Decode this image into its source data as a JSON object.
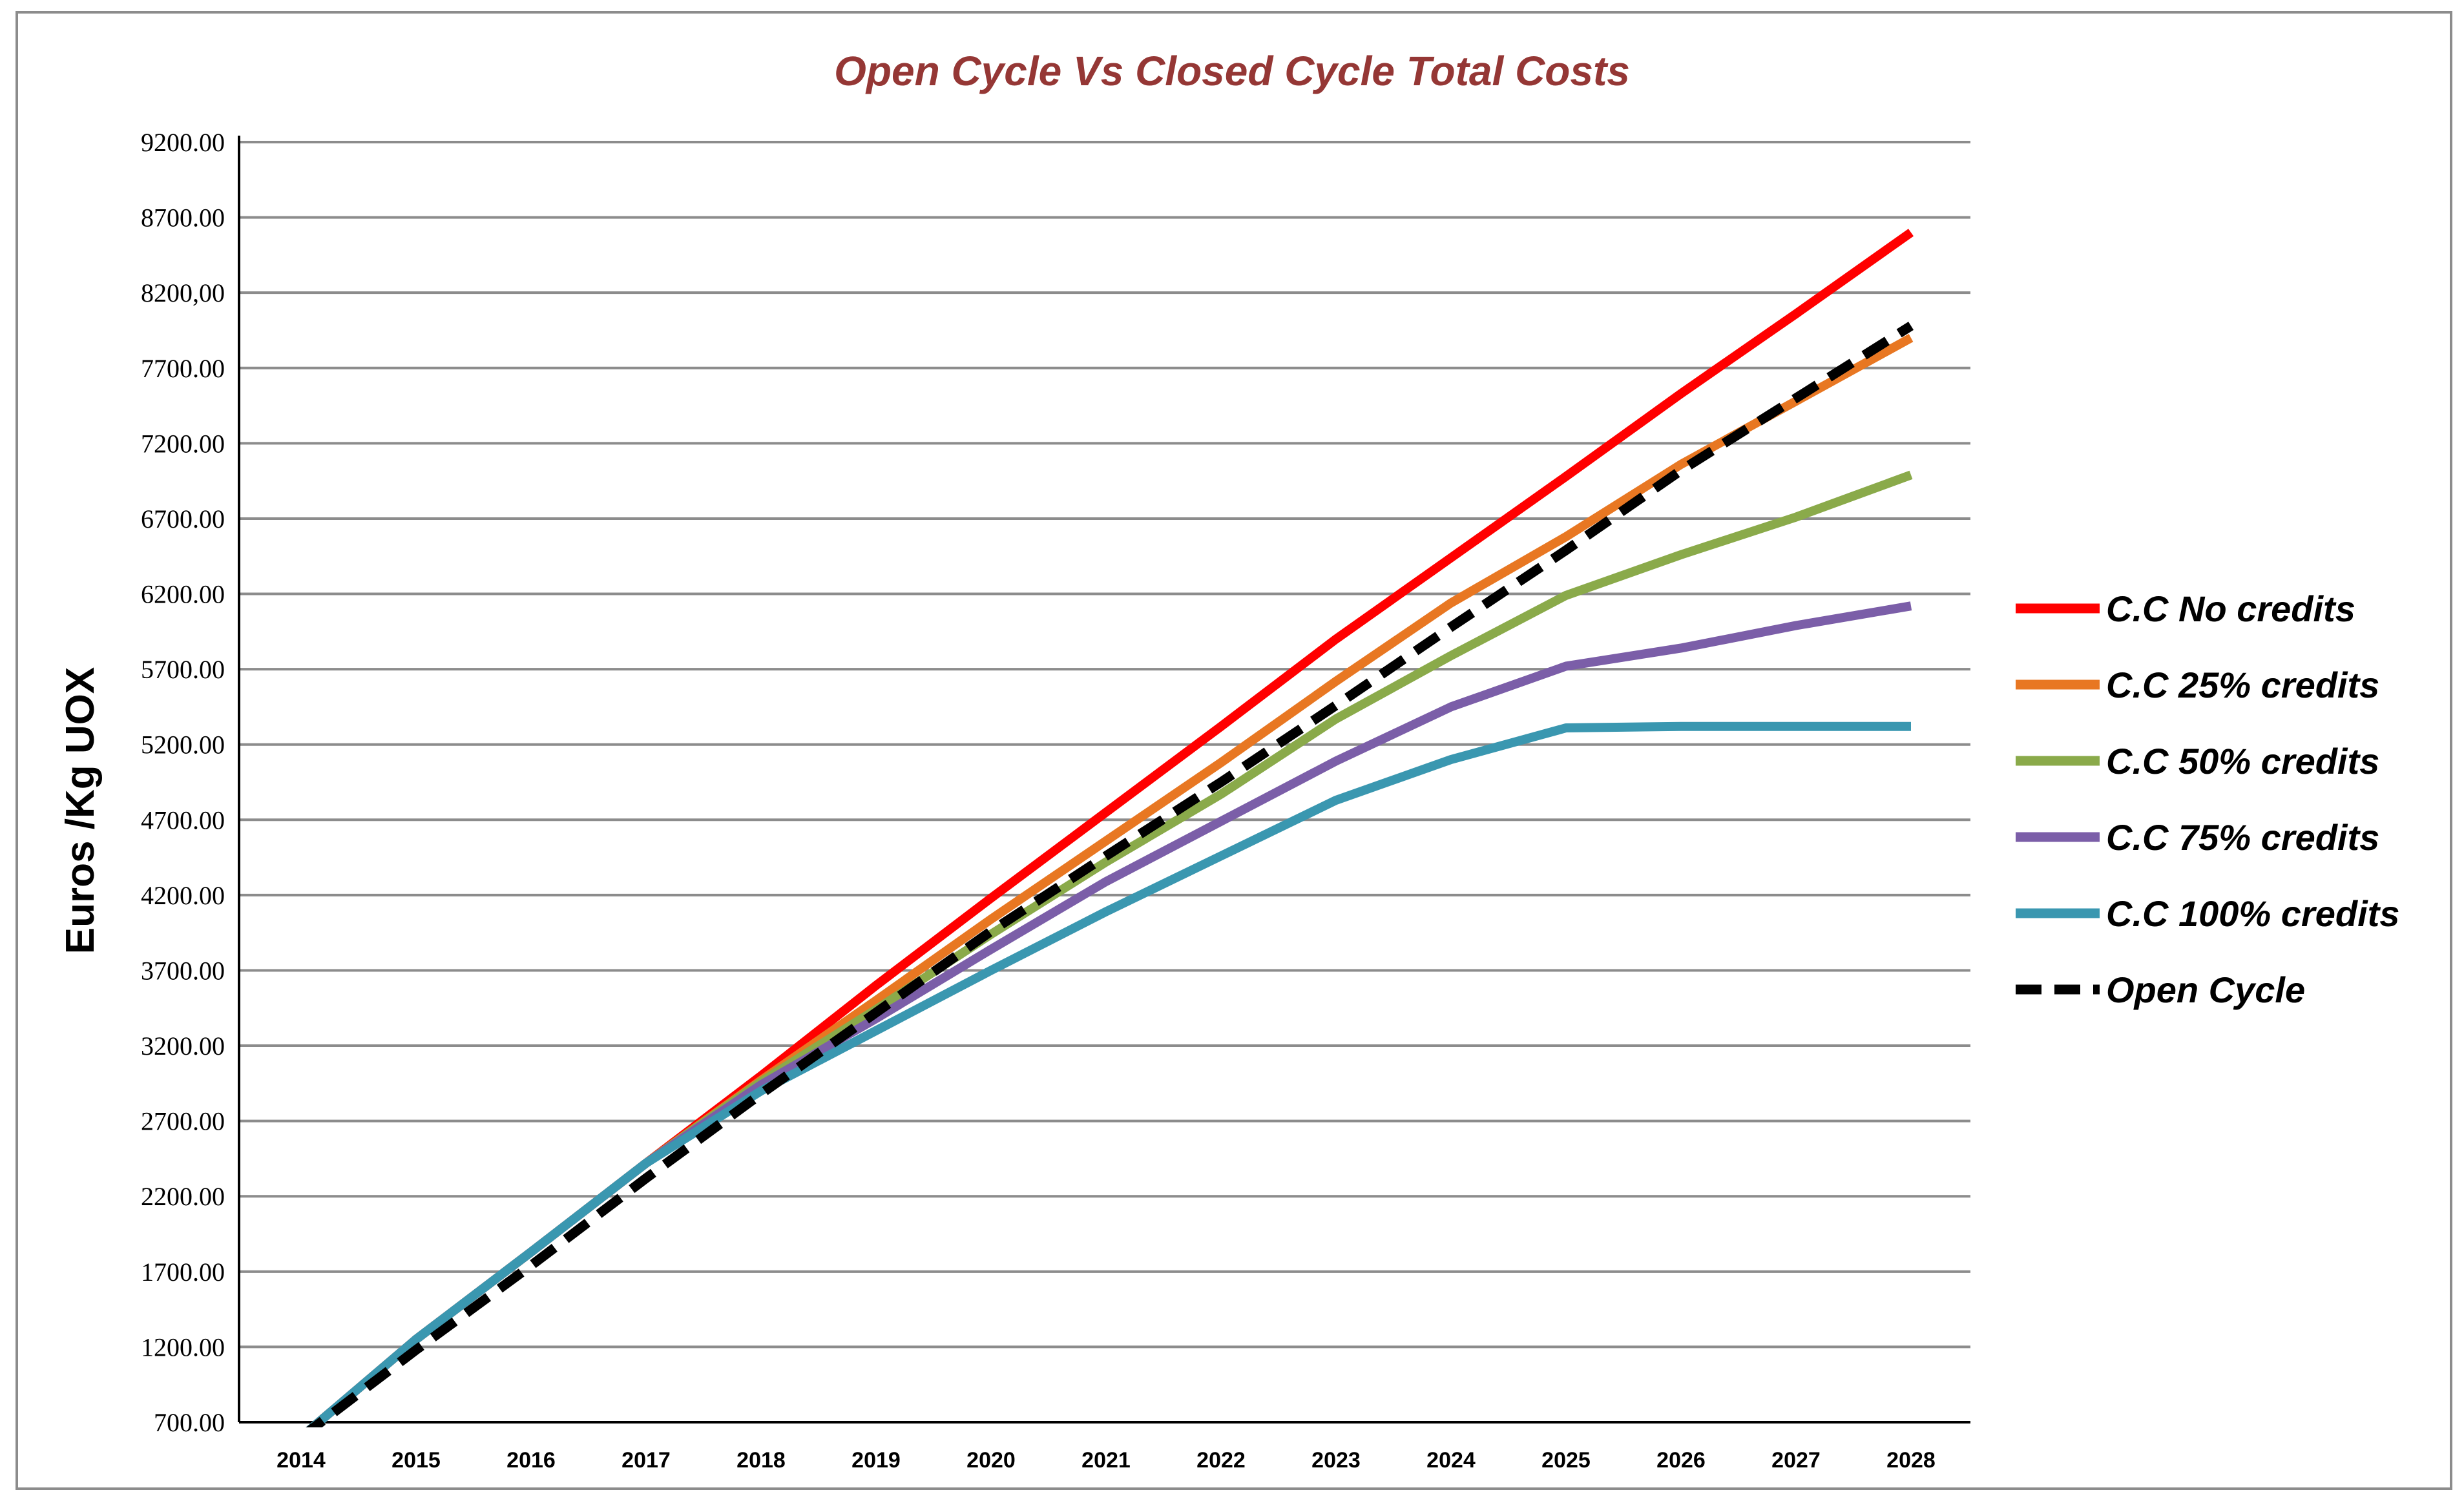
{
  "chart_data": {
    "type": "line",
    "title": "Open Cycle Vs Closed Cycle Total Costs",
    "xlabel": "",
    "ylabel": "Euros /Kg UOX",
    "categories": [
      "2014",
      "2015",
      "2016",
      "2017",
      "2018",
      "2019",
      "2020",
      "2021",
      "2022",
      "2023",
      "2024",
      "2025",
      "2026",
      "2027",
      "2028"
    ],
    "y_tick_labels": [
      "700.00",
      "1200.00",
      "1700.00",
      "2200.00",
      "2700.00",
      "3200.00",
      "3700.00",
      "4200.00",
      "4700.00",
      "5200.00",
      "5700.00",
      "6200.00",
      "6700.00",
      "7200.00",
      "7700.00",
      "8200,00",
      "8700.00",
      "9200.00"
    ],
    "y_tick_values": [
      700,
      1200,
      1700,
      2200,
      2700,
      3200,
      3700,
      4200,
      4700,
      5200,
      5700,
      6200,
      6700,
      7200,
      7700,
      8200,
      8700,
      9200
    ],
    "ylim": [
      700,
      9200
    ],
    "grid": true,
    "legend_position": "right",
    "series": [
      {
        "name": "C.C No credits",
        "color": "#ff0000",
        "dashed": false,
        "values": [
          600,
          1250,
          1830,
          2420,
          3000,
          3600,
          4180,
          4750,
          5320,
          5900,
          6440,
          6980,
          7530,
          8060,
          8600
        ]
      },
      {
        "name": "C.C 25% credits",
        "color": "#e87722",
        "dashed": false,
        "values": [
          600,
          1250,
          1830,
          2420,
          2970,
          3500,
          4040,
          4560,
          5080,
          5620,
          6140,
          6580,
          7060,
          7480,
          7900
        ]
      },
      {
        "name": "C.C 50% credits",
        "color": "#8aaa4a",
        "dashed": false,
        "values": [
          600,
          1250,
          1830,
          2420,
          2960,
          3440,
          3940,
          4420,
          4870,
          5370,
          5790,
          6190,
          6460,
          6710,
          6990
        ]
      },
      {
        "name": "C.C 75% credits",
        "color": "#7b5ea8",
        "dashed": false,
        "values": [
          600,
          1250,
          1830,
          2420,
          2940,
          3380,
          3840,
          4290,
          4690,
          5090,
          5450,
          5720,
          5840,
          5990,
          6120
        ]
      },
      {
        "name": "C.C 100% credits",
        "color": "#3a97b0",
        "dashed": false,
        "values": [
          600,
          1250,
          1830,
          2420,
          2900,
          3300,
          3700,
          4090,
          4460,
          4830,
          5100,
          5310,
          5320,
          5320,
          5320
        ]
      },
      {
        "name": "Open Cycle",
        "color": "#000000",
        "dashed": true,
        "values": [
          600,
          1180,
          1740,
          2320,
          2880,
          3420,
          3960,
          4460,
          4950,
          5460,
          5980,
          6490,
          7020,
          7500,
          7980
        ]
      }
    ]
  }
}
